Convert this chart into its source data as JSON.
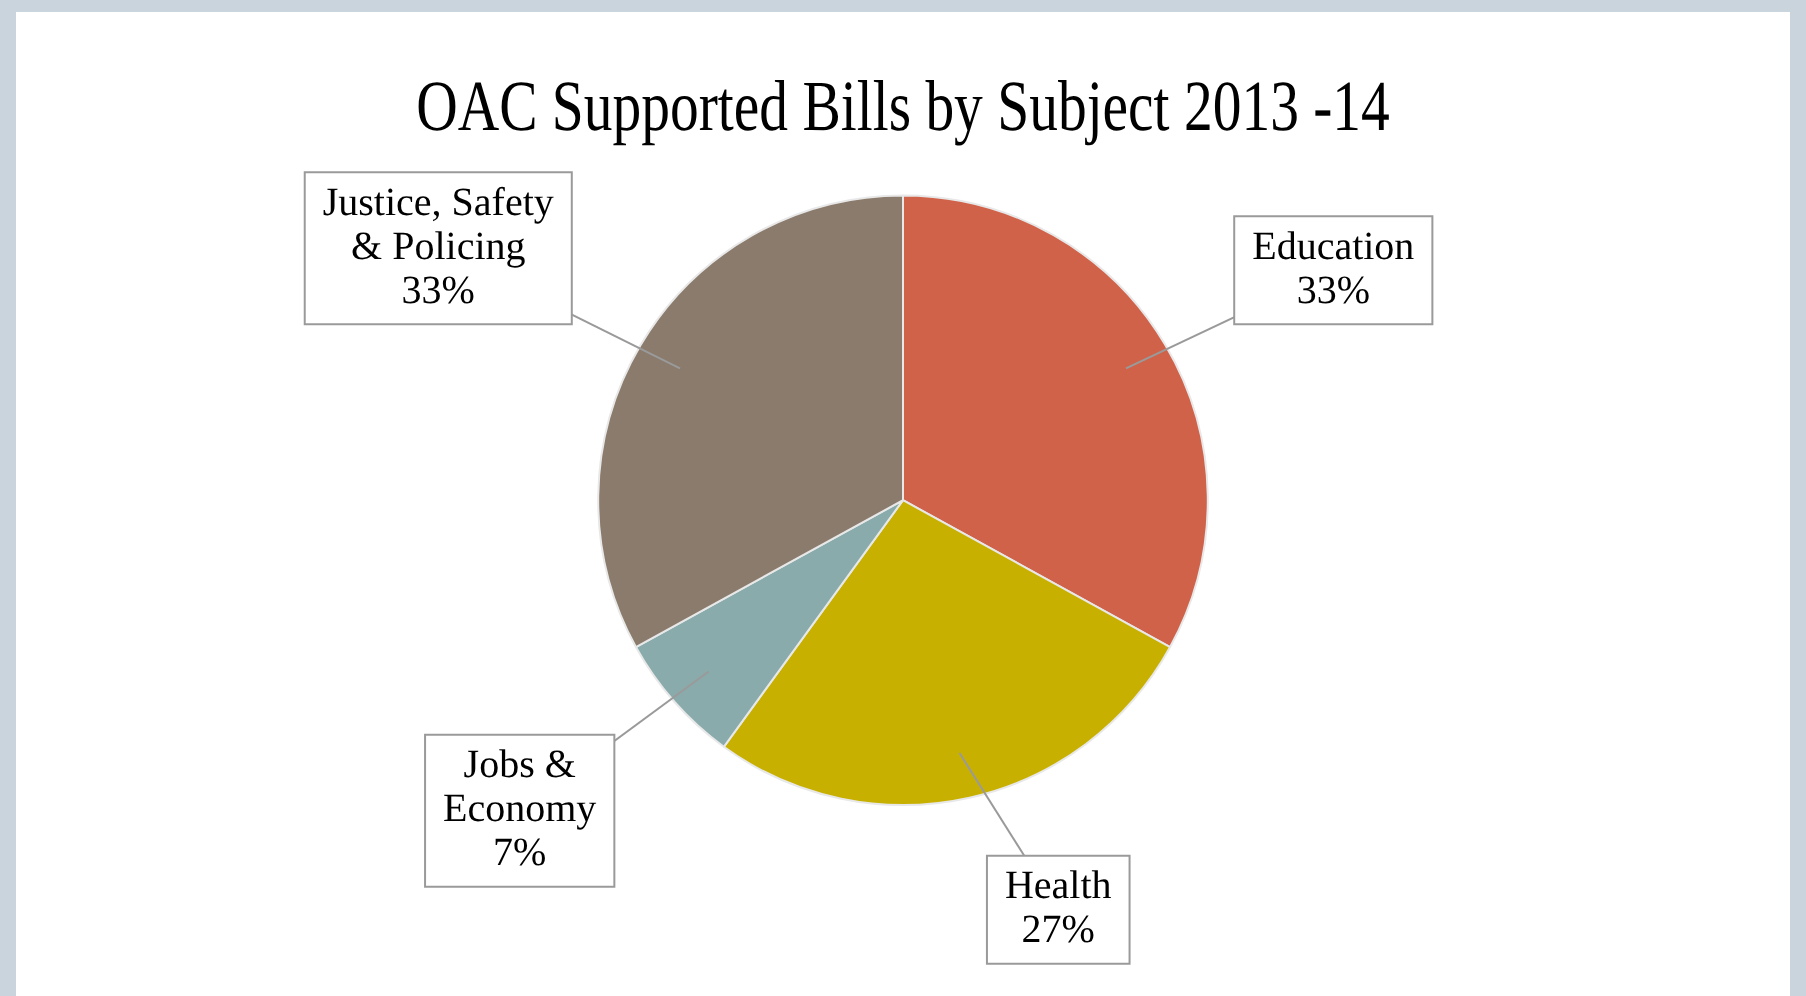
{
  "chart_data": {
    "type": "pie",
    "title": "OAC Supported Bills by Subject 2013 -14",
    "categories": [
      "Education",
      "Health",
      "Jobs & Economy",
      "Justice, Safety & Policing"
    ],
    "values": [
      33,
      27,
      7,
      33
    ],
    "value_labels": [
      "33%",
      "27%",
      "7%",
      "33%"
    ],
    "colors": [
      "#d0624a",
      "#c8b000",
      "#8aabab",
      "#8a7b6c"
    ],
    "legend": false
  }
}
